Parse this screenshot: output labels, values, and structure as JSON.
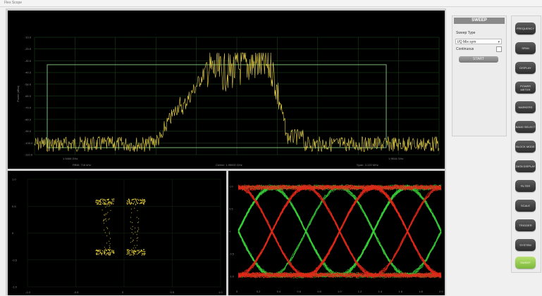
{
  "window": {
    "title": "Flex Scope"
  },
  "spectrum": {
    "y_ticks": [
      "-10.0",
      "-20.0",
      "-30.0",
      "-40.0",
      "-50.0",
      "-60.0",
      "-70.0",
      "-80.0",
      "-90.0",
      "-100.0",
      "-110.0"
    ],
    "ylabel": "Power (dBm)",
    "left_freq": "1.9484 GHz",
    "right_freq": "1.9516 GHz",
    "rbw": "RBW: 716 kHz",
    "center": "Center: 1.95000 GHz",
    "span": "Span: 3.125 MHz"
  },
  "constellation": {
    "y_ticks": [
      "1.0",
      "0.5",
      "0",
      "-0.5",
      "-1.0"
    ],
    "x_ticks": [
      "-1.0",
      "-0.5",
      "0",
      "0.5",
      "1.0"
    ]
  },
  "eye": {
    "y_ticks": [
      "1.0",
      "0.5",
      "0",
      "-0.5",
      "-1.0"
    ],
    "x_ticks": [
      "0",
      "0.2",
      "0.4",
      "0.6",
      "0.8",
      "1.0",
      "1.2",
      "1.4",
      "1.6",
      "1.8",
      "2.0"
    ]
  },
  "sweep": {
    "title": "SWEEP",
    "sweep_type_label": "Sweep Type",
    "sweep_type_value": "I/Q Mix sym",
    "continuous_label": "Continuous",
    "start_label": "START"
  },
  "menu": {
    "buttons": [
      "FREQUENCY",
      "SPAN",
      "DISPLAY",
      "POWER METER",
      "MARKERS",
      "BAND SELECT",
      "BLOCK MODE",
      "DATA DISPLAY",
      "FILTER",
      "SCALE",
      "TRIGGER",
      "SYSTEM",
      "SWEEP"
    ]
  },
  "colors": {
    "trace": "#e8d24a",
    "eye_red": "#e02818",
    "eye_green": "#38d038",
    "grid": "#2a5a2a",
    "mask": "#78b878"
  }
}
